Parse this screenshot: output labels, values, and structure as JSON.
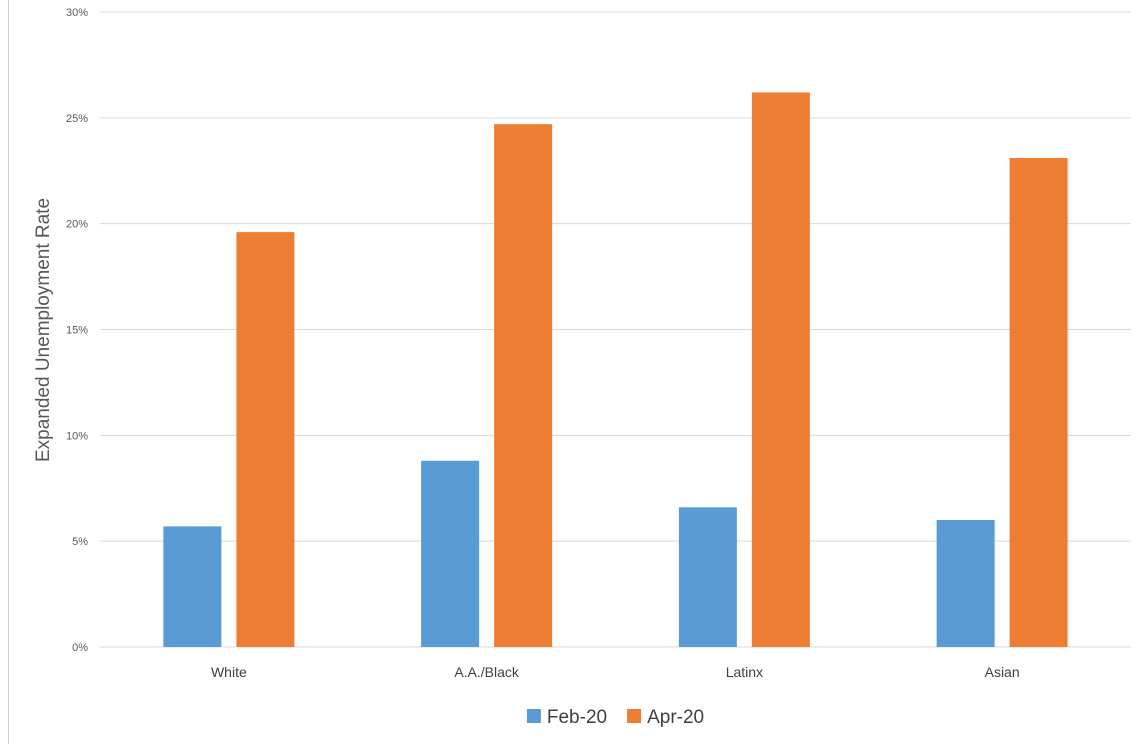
{
  "chart_data": {
    "type": "bar",
    "categories": [
      "White",
      "A.A./Black",
      "Latinx",
      "Asian"
    ],
    "series": [
      {
        "name": "Feb-20",
        "color": "#5b9bd5",
        "values": [
          5.7,
          8.8,
          6.6,
          6.0
        ]
      },
      {
        "name": "Apr-20",
        "color": "#ed7d31",
        "values": [
          19.6,
          24.7,
          26.2,
          23.1
        ]
      }
    ],
    "ylabel": "Expanded Unemployment Rate",
    "xlabel": "",
    "ylim": [
      0,
      30
    ],
    "yticks": [
      0,
      5,
      10,
      15,
      20,
      25,
      30
    ],
    "ytick_labels": [
      "0%",
      "5%",
      "10%",
      "15%",
      "20%",
      "25%",
      "30%"
    ],
    "grid": true,
    "legend_position": "bottom-center",
    "gridline_color": "#d9d9d9"
  }
}
